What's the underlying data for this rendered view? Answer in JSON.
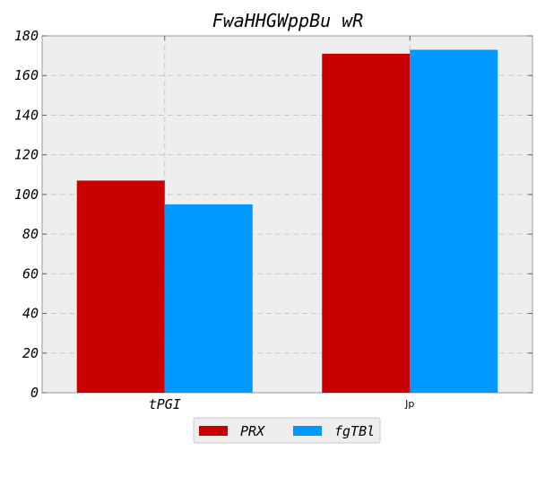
{
  "chart_data": {
    "type": "bar",
    "title": "FwaHHGWppBu wR",
    "xlabel": "",
    "ylabel": "",
    "categories": [
      "tPGI",
      "Jp"
    ],
    "series": [
      {
        "name": "PRX",
        "values": [
          107,
          171
        ],
        "color": "#c80000"
      },
      {
        "name": "fgTBl",
        "values": [
          95,
          173
        ],
        "color": "#0099ff"
      }
    ],
    "ylim": [
      0,
      180
    ],
    "yticks": [
      0,
      20,
      40,
      60,
      80,
      100,
      120,
      140,
      160,
      180
    ],
    "grid": true,
    "legend_placement": "bottom-center",
    "colors": {
      "plot_background": "#eeeeee",
      "grid": "#c8c8c8",
      "axis": "#999999"
    }
  }
}
